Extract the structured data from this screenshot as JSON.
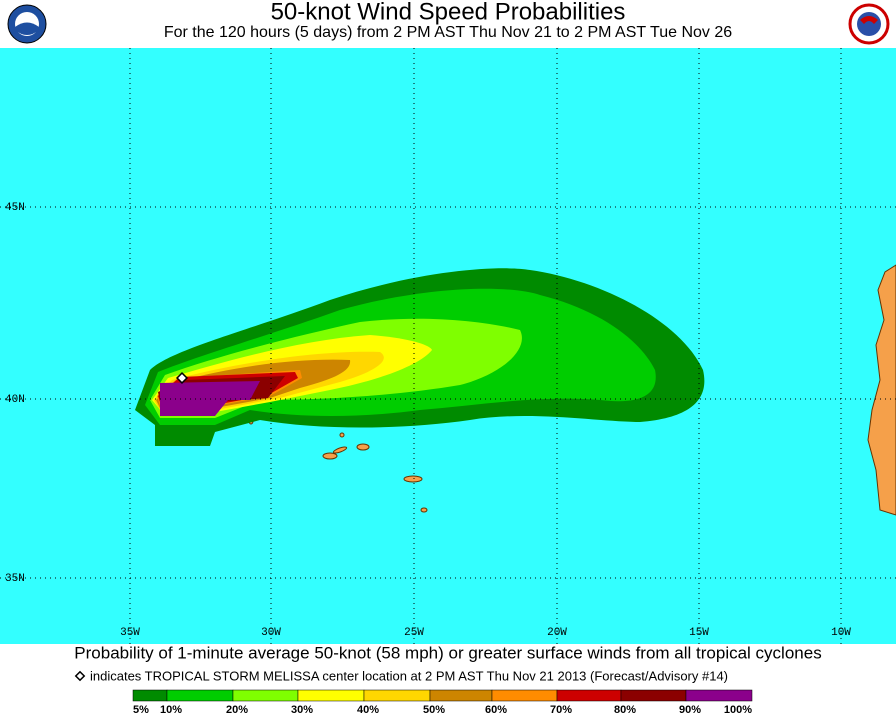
{
  "header": {
    "title": "50-knot Wind Speed Probabilities",
    "subtitle": "For the 120 hours (5 days) from 2 PM AST Thu Nov 21 to 2 PM AST Tue Nov 26"
  },
  "map": {
    "latitude_labels": [
      "45N",
      "40N",
      "35N"
    ],
    "longitude_labels": [
      "35W",
      "30W",
      "25W",
      "20W",
      "15W",
      "10W"
    ]
  },
  "footer": {
    "caption": "Probability of 1-minute average 50-knot (58 mph) or greater surface winds from all tropical cyclones",
    "note": "indicates TROPICAL STORM MELISSA center location at 2 PM AST Thu Nov 21 2013 (Forecast/Advisory #14)"
  },
  "legend": {
    "labels": [
      "5%",
      "10%",
      "20%",
      "30%",
      "40%",
      "50%",
      "60%",
      "70%",
      "80%",
      "90%",
      "100%"
    ],
    "colors": [
      "#008b00",
      "#00cd00",
      "#7fff00",
      "#ffff00",
      "#ffd700",
      "#cd8500",
      "#ff8c00",
      "#cd0000",
      "#8b0000",
      "#8b008b"
    ]
  }
}
